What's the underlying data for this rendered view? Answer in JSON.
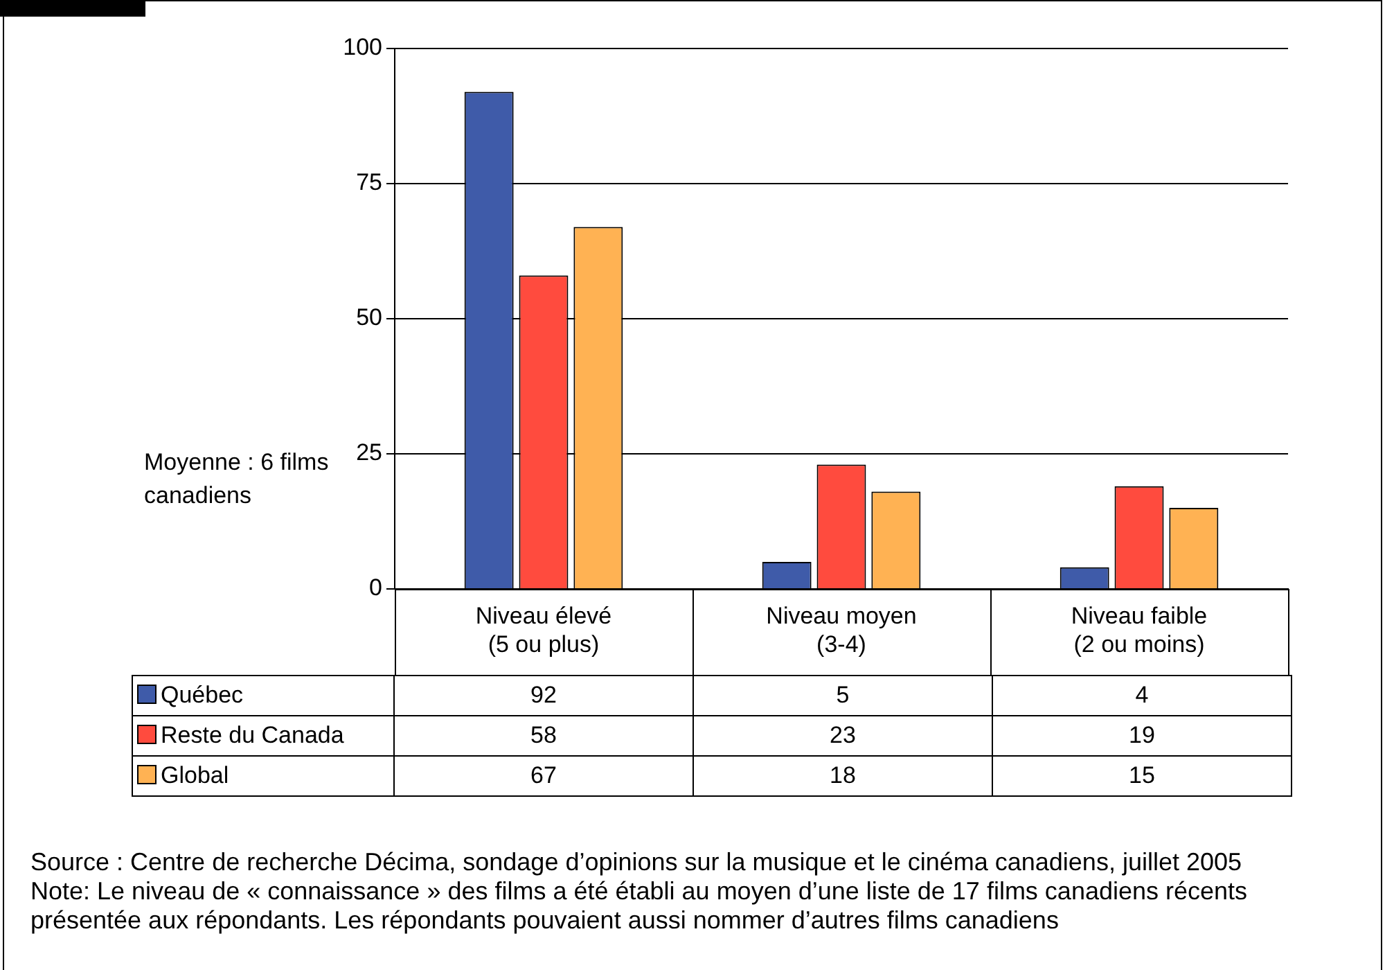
{
  "chart_data": {
    "type": "bar",
    "categories": [
      "Niveau élevé (5 ou plus)",
      "Niveau moyen (3-4)",
      "Niveau faible (2 ou moins)"
    ],
    "series": [
      {
        "name": "Québec",
        "color": "#3f5ba9",
        "values": [
          92,
          5,
          4
        ]
      },
      {
        "name": "Reste du Canada",
        "color": "#ff4b3e",
        "values": [
          58,
          23,
          19
        ]
      },
      {
        "name": "Global",
        "color": "#ffb253",
        "values": [
          67,
          18,
          15
        ]
      }
    ],
    "ylim": [
      0,
      100
    ],
    "yticks": [
      0,
      25,
      50,
      75,
      100
    ],
    "grid": "y",
    "legend": "bottom left",
    "data_labels": true,
    "annotations": [
      "Moyenne : 6 films canadiens",
      "Source : Centre de recherche Décima, sondage d’opinions sur la musique et le cinéma canadiens, juillet 2005",
      "Note: Le niveau de « connaissance » des films a été établi au moyen d’une liste de 17 films canadiens récents présentée aux répondants. Les répondants pouvaient aussi nommer d’autres films canadiens"
    ]
  }
}
